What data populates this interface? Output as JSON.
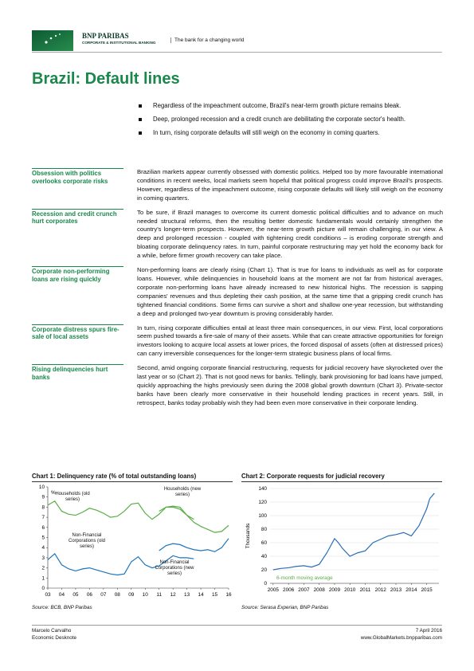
{
  "header": {
    "brand": "BNP PARIBAS",
    "division": "CORPORATE & INSTITUTIONAL BANKING",
    "tagline": "The bank for a changing world"
  },
  "title": "Brazil: Default lines",
  "bullets": [
    "Regardless of the impeachment outcome, Brazil's near-term growth picture remains bleak.",
    "Deep, prolonged recession and a credit crunch are debilitating the corporate sector's health.",
    "In turn, rising corporate defaults will still weigh on the economy in coming quarters."
  ],
  "sections": [
    {
      "label": "Obsession with politics overlooks corporate risks",
      "text": "Brazilian markets appear currently obsessed with domestic politics. Helped too by more favourable international conditions in recent weeks, local markets seem hopeful that political progress could improve Brazil's prospects. However, regardless of the impeachment outcome, rising corporate defaults will likely still weigh on the economy in coming quarters."
    },
    {
      "label": "Recession and credit crunch hurt corporates",
      "text": "To be sure, if Brazil manages to overcome its current domestic political difficulties and to advance on much needed structural reforms, then the resulting better domestic fundamentals would certainly strengthen the country's longer-term prospects. However, the near-term growth picture will remain challenging, in our view. A deep and prolonged recession - coupled with tightening credit conditions – is eroding corporate strength and bloating corporate delinquency rates. In turn, painful corporate restructuring may yet hold the economy back for a while, before firmer growth recovery can take place."
    },
    {
      "label": "Corporate non-performing loans are rising quickly",
      "text": "Non-performing loans are clearly rising (Chart 1). That is true for loans to individuals as well as for corporate loans. However, while delinquencies in household loans at the moment are not far from historical averages, corporate non-performing loans have already increased to new historical highs. The recession is sapping companies' revenues and thus depleting their cash position, at the same time that a gripping credit crunch has tightened financial conditions. Some firms can survive a short and shallow one-year recession, but withstanding a deep and prolonged two-year downturn is proving considerably harder."
    },
    {
      "label": "Corporate distress spurs fire-sale of local assets",
      "text": "In turn, rising corporate difficulties entail at least three main consequences, in our view. First, local corporations seem pushed towards a fire-sale of many of their assets. While that can create attractive opportunities for foreign investors looking to acquire local assets at lower prices, the forced disposal of assets (often at distressed prices) can carry irreversible consequences for the longer-term strategic business plans of local firms."
    },
    {
      "label": "Rising delinquencies hurt banks",
      "text": "Second, amid ongoing corporate financial restructuring, requests for judicial recovery have skyrocketed over the last year or so (Chart 2). That is not good news for banks. Tellingly, bank provisioning for bad loans have jumped, quickly approaching the highs previously seen during the 2008 global growth downturn (Chart 3). Private-sector banks have been clearly more conservative in their household lending practices in recent years. Still, in retrospect, banks today probably wish they had been even more conservative in their corporate lending."
    }
  ],
  "chart_data": [
    {
      "type": "line",
      "title": "Chart 1: Delinquency rate (% of total outstanding loans)",
      "y_unit": "%",
      "source": "Source: BCB, BNP Paribas",
      "xlim": [
        2003,
        2016
      ],
      "ylim": [
        0,
        10
      ],
      "yticks": [
        0,
        1,
        2,
        3,
        4,
        5,
        6,
        7,
        8,
        9,
        10
      ],
      "xticks": [
        {
          "value": 2003,
          "label": "03"
        },
        {
          "value": 2004,
          "label": "04"
        },
        {
          "value": 2005,
          "label": "05"
        },
        {
          "value": 2006,
          "label": "06"
        },
        {
          "value": 2007,
          "label": "07"
        },
        {
          "value": 2008,
          "label": "08"
        },
        {
          "value": 2009,
          "label": "09"
        },
        {
          "value": 2010,
          "label": "10"
        },
        {
          "value": 2011,
          "label": "11"
        },
        {
          "value": 2012,
          "label": "12"
        },
        {
          "value": 2013,
          "label": "13"
        },
        {
          "value": 2014,
          "label": "14"
        },
        {
          "value": 2015,
          "label": "15"
        },
        {
          "value": 2016,
          "label": "16"
        }
      ],
      "grid": false,
      "series": [
        {
          "name": "Households (old series)",
          "color": "#5aae45",
          "x": [
            2003,
            2003.5,
            2004,
            2004.5,
            2005,
            2005.5,
            2006,
            2006.5,
            2007,
            2007.5,
            2008,
            2008.5,
            2009,
            2009.5,
            2010,
            2010.5,
            2011,
            2011.5,
            2012,
            2012.5,
            2013,
            2013.5
          ],
          "values": [
            8.2,
            8.6,
            7.6,
            7.3,
            7.2,
            7.5,
            7.9,
            7.7,
            7.4,
            7.0,
            7.1,
            7.6,
            8.3,
            8.4,
            7.4,
            6.8,
            7.3,
            8.0,
            8.0,
            7.8,
            7.2,
            6.8
          ]
        },
        {
          "name": "Households (new series)",
          "color": "#5aae45",
          "x": [
            2011,
            2011.5,
            2012,
            2012.5,
            2013,
            2013.5,
            2014,
            2014.5,
            2015,
            2015.5,
            2016
          ],
          "values": [
            7.6,
            8.0,
            8.1,
            8.0,
            7.2,
            6.5,
            6.1,
            5.8,
            5.5,
            5.6,
            6.2
          ]
        },
        {
          "name": "Non-Financial Corporations (old series)",
          "color": "#1c75bc",
          "x": [
            2003,
            2003.5,
            2004,
            2004.5,
            2005,
            2005.5,
            2006,
            2006.5,
            2007,
            2007.5,
            2008,
            2008.5,
            2009,
            2009.5,
            2010,
            2010.5,
            2011,
            2011.5,
            2012,
            2012.5,
            2013,
            2013.5
          ],
          "values": [
            2.8,
            3.4,
            2.3,
            1.9,
            1.7,
            1.9,
            2.0,
            1.8,
            1.6,
            1.4,
            1.3,
            1.4,
            2.6,
            3.1,
            2.3,
            2.0,
            2.2,
            2.7,
            3.2,
            3.0,
            3.0,
            2.9
          ]
        },
        {
          "name": "Non-Financial Corporations (new series)",
          "color": "#1c75bc",
          "x": [
            2011,
            2011.5,
            2012,
            2012.5,
            2013,
            2013.5,
            2014,
            2014.5,
            2015,
            2015.5,
            2016
          ],
          "values": [
            3.7,
            4.2,
            4.4,
            4.3,
            4.0,
            3.8,
            3.7,
            3.8,
            3.6,
            4.0,
            4.9
          ]
        }
      ]
    },
    {
      "type": "line",
      "title": "Chart 2: Corporate requests for judicial recovery",
      "ylabel": "Thousands",
      "annotation": "6-month moving average",
      "annotation_color": "#5aae45",
      "source": "Source: Serasa Experian, BNP Paribas",
      "xlim": [
        2004.8,
        2015.8
      ],
      "ylim": [
        0,
        140
      ],
      "yticks": [
        0,
        20,
        40,
        60,
        80,
        100,
        120,
        140
      ],
      "xticks": [
        2005,
        2006,
        2007,
        2008,
        2009,
        2010,
        2011,
        2012,
        2013,
        2014,
        2015
      ],
      "grid": true,
      "series": [
        {
          "name": "Corporate requests for judicial recovery",
          "color": "#2a6db5",
          "x": [
            2005,
            2005.5,
            2006,
            2006.5,
            2007,
            2007.5,
            2008,
            2008.5,
            2009,
            2009.25,
            2009.5,
            2010,
            2010.5,
            2011,
            2011.5,
            2012,
            2012.5,
            2013,
            2013.5,
            2014,
            2014.5,
            2015,
            2015.2,
            2015.5
          ],
          "values": [
            20,
            22,
            23,
            25,
            26,
            24,
            28,
            45,
            66,
            60,
            52,
            40,
            45,
            48,
            60,
            65,
            70,
            72,
            75,
            70,
            85,
            110,
            125,
            133
          ]
        }
      ]
    }
  ],
  "footer": {
    "author": "Marcelo Carvalho",
    "publication": "Economic Desknote",
    "date": "7 April 2016",
    "url": "www.GlobalMarkets.bnpparibas.com"
  }
}
